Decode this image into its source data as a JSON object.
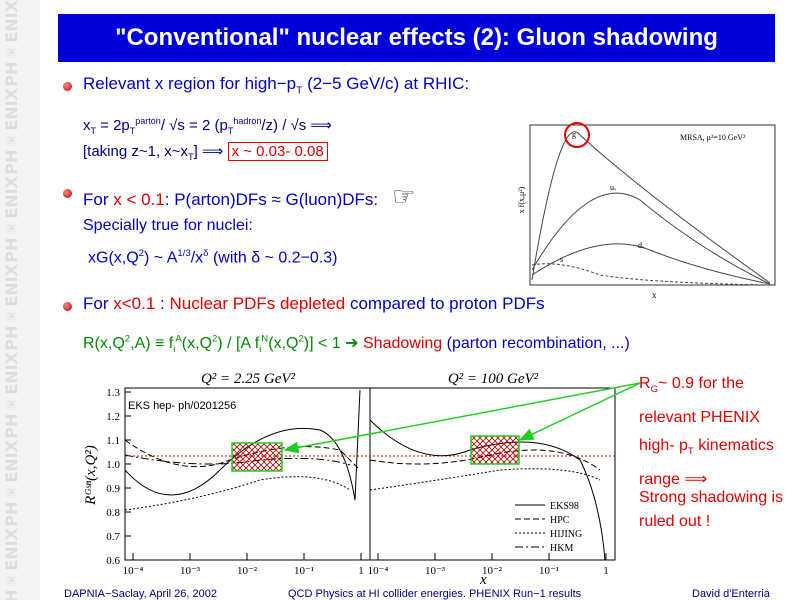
{
  "sidebar": {
    "logo": "PH✳ENIX"
  },
  "title": "\"Conventional\" nuclear effects (2): Gluon shadowing",
  "bullet1": [
    "Relevant x region for high−p",
    "T",
    " (2−5 GeV/c) at RHIC:"
  ],
  "formula1": [
    "x",
    "T",
    " = 2p",
    "T",
    "parton",
    "/ √s = 2 (p",
    "T",
    "hadron",
    "/z) / √s ⟹"
  ],
  "formula2": [
    "[taking z~1, x~x",
    "T",
    "] ⟹ ",
    "x ~ 0.03- 0.08"
  ],
  "bullet2": [
    "For ",
    "x < 0.1",
    ": P(arton)DFs ≈ G(luon)DFs:",
    "☞"
  ],
  "nuclei": "Specially true for nuclei:",
  "formula3": [
    "xG(x,Q",
    "2",
    ") ~ A",
    "1/3",
    "/x",
    "δ",
    " (with δ ~ 0.2−0.3)"
  ],
  "bullet3": [
    "For ",
    "x<0.1",
    " : ",
    "Nuclear PDFs depleted",
    " compared to proton PDFs"
  ],
  "formula4": [
    "R(x,Q",
    "2",
    ",A) ≡ f",
    "i",
    "A",
    "(x,Q",
    "2",
    ") / [A f",
    "i",
    "N",
    "(x,Q",
    "2",
    ")] < 1  ➔ ",
    "Shadowing",
    " (parton recombination, ...)"
  ],
  "note": [
    "R",
    "G",
    "~ 0.9 for the relevant PHENIX high- p",
    "T",
    " kinematics range ⟹"
  ],
  "conclusion": "Strong shadowing is ruled out !",
  "inset": {
    "label": "MRSA, μ²=10 GeV²",
    "x_label": "x",
    "y_label": "x f(x,μ²)",
    "curves": [
      "g",
      "uᵥ",
      "dᵥ",
      "s"
    ]
  },
  "plot": {
    "panels": [
      "Q² = 2.25 GeV²",
      "Q² = 100 GeV²"
    ],
    "reference": "EKS hep- ph/0201256",
    "y_label": "Rᴳˢⁿ(x,Q²)",
    "x_label": "x",
    "yticks": [
      "1.3",
      "1.2",
      "1.1",
      "1.0",
      "0.9",
      "0.8",
      "0.7",
      "0.6"
    ],
    "xticks": [
      "10⁻⁴",
      "10⁻³",
      "10⁻²",
      "10⁻¹",
      "1"
    ],
    "legend": [
      "EKS98",
      "HPC",
      "HIJING",
      "HKM"
    ]
  },
  "footer": {
    "left": "DAPNIA−Saclay, April 26, 2002",
    "center": "QCD Physics at HI collider energies. PHENIX Run−1 results",
    "right": "David d'Enterria"
  }
}
